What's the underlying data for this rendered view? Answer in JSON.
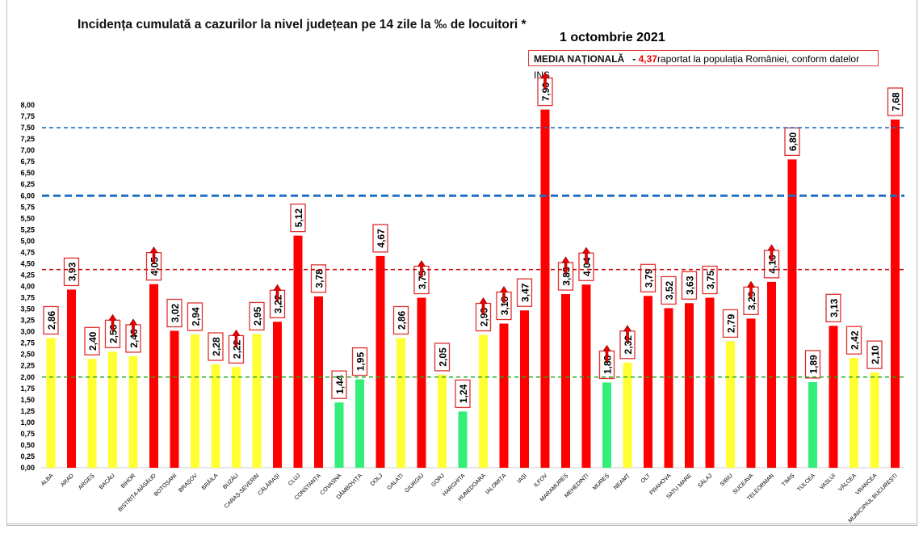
{
  "chart_data": {
    "type": "bar",
    "title": "Incidența cumulată a cazurilor la nivel județean pe 14 zile la ‰ de locuitori *",
    "subtitle": "1 octombrie 2021",
    "annotation": {
      "label": "MEDIA NAȚIONALĂ",
      "dash": "-",
      "value": "4,37",
      "text": "raportat la populația României, conform datelor INS"
    },
    "ylim": [
      0,
      8
    ],
    "yticks": [
      "0,00",
      "0,25",
      "0,50",
      "0,75",
      "1,00",
      "1,25",
      "1,50",
      "1,75",
      "2,00",
      "2,25",
      "2,50",
      "2,75",
      "3,00",
      "3,25",
      "3,50",
      "3,75",
      "4,00",
      "4,25",
      "4,50",
      "4,75",
      "5,00",
      "5,25",
      "5,50",
      "5,75",
      "6,00",
      "6,25",
      "6,50",
      "6,75",
      "7,00",
      "7,25",
      "7,50",
      "7,75",
      "8,00"
    ],
    "reference_lines": [
      {
        "value": 2.0,
        "color": "#22aa22"
      },
      {
        "value": 4.37,
        "color": "#cc1111"
      },
      {
        "value": 6.0,
        "color": "#1f6fc0"
      },
      {
        "value": 7.5,
        "color": "#1f6fc0"
      }
    ],
    "colors": {
      "red": "#ff0000",
      "yellow": "#ffff33",
      "green": "#33ee77"
    },
    "categories": [
      "ALBA",
      "ARAD",
      "ARGEȘ",
      "BACĂU",
      "BIHOR",
      "BISTRIȚA-NĂSĂUD",
      "BOTOȘANI",
      "BRAȘOV",
      "BRĂILA",
      "BUZĂU",
      "CARAȘ-SEVERIN",
      "CĂLĂRAȘI",
      "CLUJ",
      "CONSTANȚA",
      "COVASNA",
      "DÂMBOVIȚA",
      "DOLJ",
      "GALAȚI",
      "GIURGIU",
      "GORJ",
      "HARGHITA",
      "HUNEDOARA",
      "IALOMIȚA",
      "IAȘI",
      "ILFOV",
      "MARAMUREȘ",
      "MEHEDINȚI",
      "MUREȘ",
      "NEAMȚ",
      "OLT",
      "PRAHOVA",
      "SATU MARE",
      "SĂLAJ",
      "SIBIU",
      "SUCEAVA",
      "TELEORMAN",
      "TIMIȘ",
      "TULCEA",
      "VASLUI",
      "VÂLCEA",
      "VRANCEA",
      "MUNICIPIUL BUCUREȘTI"
    ],
    "values": [
      2.86,
      3.93,
      2.4,
      2.56,
      2.46,
      4.05,
      3.02,
      2.94,
      2.28,
      2.22,
      2.95,
      3.22,
      5.12,
      3.78,
      1.44,
      1.95,
      4.67,
      2.86,
      3.75,
      2.05,
      1.24,
      2.93,
      3.18,
      3.47,
      7.9,
      3.83,
      4.04,
      1.88,
      2.32,
      3.79,
      3.52,
      3.63,
      3.75,
      2.79,
      3.29,
      4.1,
      6.8,
      1.89,
      3.13,
      2.42,
      2.1,
      7.68
    ],
    "labels": [
      "2,86",
      "3,93",
      "2,40",
      "2,56",
      "2,46",
      "4,05",
      "3,02",
      "2,94",
      "2,28",
      "2,22",
      "2,95",
      "3,22",
      "5,12",
      "3,78",
      "1,44",
      "1,95",
      "4,67",
      "2,86",
      "3,75",
      "2,05",
      "1,24",
      "2,93",
      "3,18",
      "3,47",
      "7,90",
      "3,83",
      "4,04",
      "1,88",
      "2,32",
      "3,79",
      "3,52",
      "3,63",
      "3,75",
      "2,79",
      "3,29",
      "4,10",
      "6,80",
      "1,89",
      "3,13",
      "2,42",
      "2,10",
      "7,68"
    ],
    "bar_colors": [
      "yellow",
      "red",
      "yellow",
      "yellow",
      "yellow",
      "red",
      "red",
      "yellow",
      "yellow",
      "yellow",
      "yellow",
      "red",
      "red",
      "red",
      "green",
      "green",
      "red",
      "yellow",
      "red",
      "yellow",
      "green",
      "yellow",
      "red",
      "red",
      "red",
      "red",
      "red",
      "green",
      "yellow",
      "red",
      "red",
      "red",
      "red",
      "yellow",
      "red",
      "red",
      "red",
      "green",
      "red",
      "yellow",
      "yellow",
      "red"
    ],
    "trend_up": [
      false,
      false,
      false,
      true,
      true,
      true,
      false,
      false,
      false,
      true,
      false,
      true,
      false,
      false,
      false,
      false,
      false,
      false,
      true,
      false,
      false,
      true,
      true,
      false,
      true,
      true,
      true,
      true,
      true,
      false,
      false,
      false,
      false,
      false,
      true,
      true,
      false,
      false,
      false,
      false,
      false,
      false
    ]
  }
}
